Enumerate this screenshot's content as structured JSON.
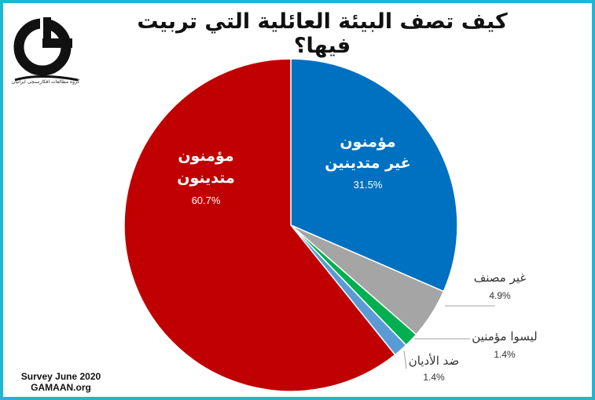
{
  "title": "کیف تصف البیئة العائلیة التي تربیت فیها؟",
  "logo": {
    "caption": "گروه مطالعات افکارسنجی ایرانیان"
  },
  "source": {
    "line1": "Survey June 2020",
    "line2": "GAMAAN.org"
  },
  "chart_data": {
    "type": "pie",
    "title": "کیف تصف البیئة العائلیة التي تربیت فیها؟",
    "start_angle_deg": 0,
    "direction": "clockwise",
    "slices": [
      {
        "label": [
          "مؤمنون",
          "غير متدينين"
        ],
        "value": 31.5,
        "display": "31.5%",
        "color": "#0070c0",
        "label_color": "#ffffff",
        "label_position": "inside"
      },
      {
        "label": [
          "غير مصنف"
        ],
        "value": 4.9,
        "display": "4.9%",
        "color": "#a5a5a5",
        "label_color": "#333333",
        "label_position": "outside"
      },
      {
        "label": [
          "ليسوا مؤمنين"
        ],
        "value": 1.4,
        "display": "1.4%",
        "color": "#00b050",
        "label_color": "#333333",
        "label_position": "outside"
      },
      {
        "label": [
          "ضد الأديان"
        ],
        "value": 1.4,
        "display": "1.4%",
        "color": "#5b9bd5",
        "label_color": "#333333",
        "label_position": "outside"
      },
      {
        "label": [
          "مؤمنون",
          "متدينون"
        ],
        "value": 60.7,
        "display": "60.7%",
        "color": "#c00000",
        "label_color": "#ffffff",
        "label_position": "inside"
      }
    ]
  }
}
